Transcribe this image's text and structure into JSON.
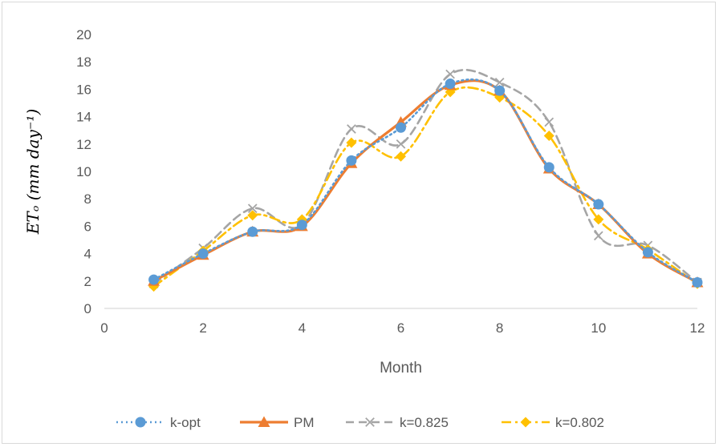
{
  "chart_data": {
    "type": "line",
    "title": "",
    "xlabel": "Month",
    "ylabel": "ETₒ (mm day⁻¹)",
    "xlim": [
      0,
      12
    ],
    "ylim": [
      0,
      20
    ],
    "x_ticks": [
      "0",
      "2",
      "4",
      "6",
      "8",
      "10",
      "12"
    ],
    "y_ticks": [
      "0",
      "2",
      "4",
      "6",
      "8",
      "10",
      "12",
      "14",
      "16",
      "18",
      "20"
    ],
    "grid": false,
    "legend_position": "bottom",
    "smoothed": true,
    "series": [
      {
        "name": "k-opt",
        "color": "#5b9bd5",
        "line": "dotted",
        "marker": "circle",
        "x": [
          1,
          2,
          3,
          4,
          5,
          6,
          7,
          8,
          9,
          10,
          11,
          12
        ],
        "y": [
          2.1,
          4.0,
          5.6,
          6.1,
          10.8,
          13.2,
          16.4,
          15.9,
          10.3,
          7.6,
          4.1,
          1.9
        ]
      },
      {
        "name": "PM",
        "color": "#ed7d31",
        "line": "solid",
        "marker": "triangle",
        "x": [
          1,
          2,
          3,
          4,
          5,
          6,
          7,
          8,
          9,
          10,
          11,
          12
        ],
        "y": [
          2.0,
          3.9,
          5.6,
          6.0,
          10.6,
          13.6,
          16.3,
          15.9,
          10.2,
          7.6,
          4.0,
          1.9
        ]
      },
      {
        "name": "k=0.825",
        "color": "#a5a5a5",
        "line": "dashed",
        "marker": "x",
        "x": [
          1,
          2,
          3,
          4,
          5,
          6,
          7,
          8,
          9,
          10,
          11,
          12
        ],
        "y": [
          1.8,
          4.4,
          7.3,
          6.1,
          13.1,
          12.0,
          17.1,
          16.5,
          13.6,
          5.3,
          4.6,
          1.9
        ]
      },
      {
        "name": "k=0.802",
        "color": "#ffc000",
        "line": "dashdot",
        "marker": "diamond",
        "x": [
          1,
          2,
          3,
          4,
          5,
          6,
          7,
          8,
          9,
          10,
          11,
          12
        ],
        "y": [
          1.6,
          4.2,
          6.8,
          6.5,
          12.1,
          11.1,
          15.8,
          15.4,
          12.6,
          6.5,
          4.3,
          1.8
        ]
      }
    ]
  }
}
